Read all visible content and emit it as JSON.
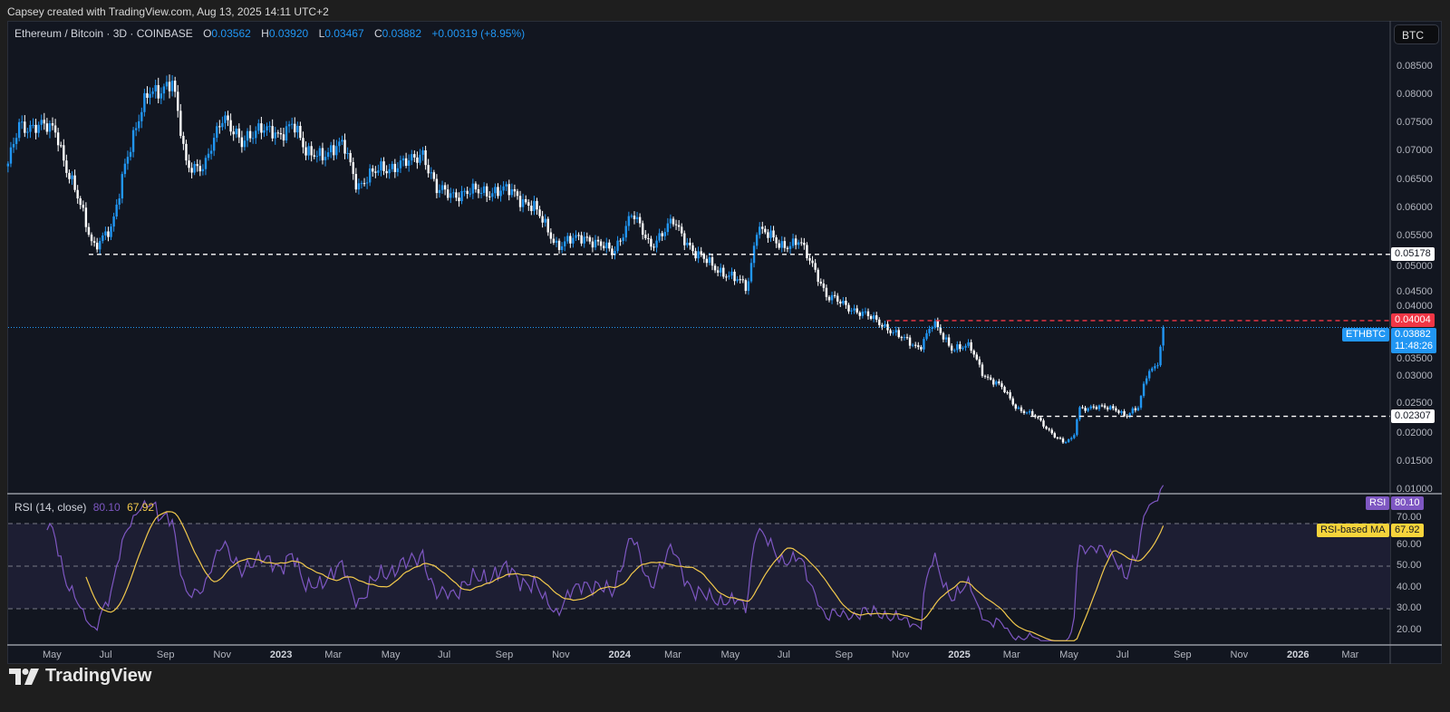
{
  "header": {
    "credit": "Capsey created with TradingView.com, Aug 13, 2025 14:11 UTC+2"
  },
  "legend": {
    "symbol": "Ethereum / Bitcoin · 3D · COINBASE",
    "o_label": "O",
    "o": "0.03562",
    "h_label": "H",
    "h": "0.03920",
    "l_label": "L",
    "l": "0.03467",
    "c_label": "C",
    "c": "0.03882",
    "change": "+0.00319 (+8.95%)"
  },
  "currency": "BTC",
  "rsi": {
    "title": "RSI (14, close)",
    "value": "80.10",
    "ma_value": "67.92",
    "tag_label": "RSI",
    "ma_tag_label": "RSI-based MA"
  },
  "tags": {
    "symbol": "ETHBTC",
    "last_price": "0.03882",
    "countdown": "11:48:26",
    "level_high": "0.04004",
    "level_mid": "0.05178",
    "level_low": "0.02307"
  },
  "branding": {
    "logo_text": "TradingView"
  },
  "colors": {
    "up": "#2196f3",
    "down": "#ffffff",
    "rsi": "#7e57c2",
    "rsi_ma": "#f2c94c",
    "level_red": "#f23645",
    "last_price": "#2196f3",
    "background": "#121620"
  },
  "chart_data": {
    "type": "candlestick",
    "timeframe": "3D",
    "ylim": [
      0.01,
      0.085
    ],
    "grid": false,
    "close_waypoints": [
      [
        "2022-03-15",
        0.0674
      ],
      [
        "2022-03-27",
        0.0748
      ],
      [
        "2022-05-06",
        0.074
      ],
      [
        "2022-05-16",
        0.0674
      ],
      [
        "2022-05-31",
        0.0608
      ],
      [
        "2022-06-15",
        0.0534
      ],
      [
        "2022-07-05",
        0.056
      ],
      [
        "2022-07-20",
        0.069
      ],
      [
        "2022-08-14",
        0.0806
      ],
      [
        "2022-09-08",
        0.082
      ],
      [
        "2022-09-23",
        0.068
      ],
      [
        "2022-10-13",
        0.067
      ],
      [
        "2022-11-02",
        0.077
      ],
      [
        "2022-11-22",
        0.071
      ],
      [
        "2022-12-12",
        0.075
      ],
      [
        "2023-01-01",
        0.072
      ],
      [
        "2023-01-16",
        0.076
      ],
      [
        "2023-01-31",
        0.069
      ],
      [
        "2023-02-20",
        0.07
      ],
      [
        "2023-03-12",
        0.071
      ],
      [
        "2023-03-27",
        0.064
      ],
      [
        "2023-04-21",
        0.067
      ],
      [
        "2023-05-21",
        0.068
      ],
      [
        "2023-06-05",
        0.07
      ],
      [
        "2023-06-20",
        0.063
      ],
      [
        "2023-07-10",
        0.0625
      ],
      [
        "2023-08-09",
        0.063
      ],
      [
        "2023-09-08",
        0.063
      ],
      [
        "2023-10-03",
        0.06
      ],
      [
        "2023-10-28",
        0.0534
      ],
      [
        "2023-11-27",
        0.055
      ],
      [
        "2023-12-27",
        0.052
      ],
      [
        "2024-01-16",
        0.059
      ],
      [
        "2024-02-05",
        0.0534
      ],
      [
        "2024-03-01",
        0.0575
      ],
      [
        "2024-03-26",
        0.0517
      ],
      [
        "2024-04-20",
        0.049
      ],
      [
        "2024-05-20",
        0.046
      ],
      [
        "2024-05-30",
        0.0567
      ],
      [
        "2024-06-24",
        0.0534
      ],
      [
        "2024-07-14",
        0.054
      ],
      [
        "2024-08-03",
        0.0485
      ],
      [
        "2024-08-13",
        0.0444
      ],
      [
        "2024-09-12",
        0.042
      ],
      [
        "2024-10-12",
        0.0395
      ],
      [
        "2024-11-01",
        0.037
      ],
      [
        "2024-11-21",
        0.0353
      ],
      [
        "2024-12-06",
        0.0395
      ],
      [
        "2024-12-26",
        0.0353
      ],
      [
        "2025-01-15",
        0.0353
      ],
      [
        "2025-01-30",
        0.0304
      ],
      [
        "2025-02-19",
        0.028
      ],
      [
        "2025-03-06",
        0.0246
      ],
      [
        "2025-03-26",
        0.023
      ],
      [
        "2025-04-10",
        0.0206
      ],
      [
        "2025-04-25",
        0.0184
      ],
      [
        "2025-05-06",
        0.019
      ],
      [
        "2025-05-12",
        0.0246
      ],
      [
        "2025-06-05",
        0.0246
      ],
      [
        "2025-06-20",
        0.0246
      ],
      [
        "2025-07-02",
        0.023
      ],
      [
        "2025-07-15",
        0.0246
      ],
      [
        "2025-07-25",
        0.0312
      ],
      [
        "2025-08-04",
        0.032
      ],
      [
        "2025-08-13",
        0.03882
      ]
    ],
    "last_candle": {
      "date": "2025-08-13",
      "open": 0.03562,
      "high": 0.0392,
      "low": 0.03467,
      "close": 0.03882
    },
    "levels": [
      {
        "value": 0.05178,
        "from": "2022-06-10",
        "style": "dashed",
        "color": "#ffffff"
      },
      {
        "value": 0.04004,
        "from": "2024-10-17",
        "style": "dashed",
        "color": "#f23645"
      },
      {
        "value": 0.02307,
        "from": "2025-03-21",
        "style": "dashed",
        "color": "#ffffff"
      },
      {
        "value": 0.03882,
        "from": "2022-03-15",
        "style": "dotted",
        "color": "#2196f3"
      }
    ],
    "price_ticks": [
      "0.08500",
      "0.08000",
      "0.07500",
      "0.07000",
      "0.06500",
      "0.06000",
      "0.05500",
      "0.05000",
      "0.04500",
      "0.04000",
      "0.03500",
      "0.03000",
      "0.02500",
      "0.02000",
      "0.01500",
      "0.01000"
    ],
    "rsi_ticks": [
      "70.00",
      "60.00",
      "50.00",
      "40.00",
      "30.00",
      "20.00"
    ],
    "rsi_bands": [
      70,
      50,
      30
    ],
    "time_ticks": [
      {
        "label": "May",
        "date": "2022-05-01"
      },
      {
        "label": "Jul",
        "date": "2022-07-01"
      },
      {
        "label": "Sep",
        "date": "2022-09-01"
      },
      {
        "label": "Nov",
        "date": "2022-11-01"
      },
      {
        "label": "2023",
        "date": "2023-01-01",
        "year": true
      },
      {
        "label": "Mar",
        "date": "2023-03-01"
      },
      {
        "label": "May",
        "date": "2023-05-01"
      },
      {
        "label": "Jul",
        "date": "2023-07-01"
      },
      {
        "label": "Sep",
        "date": "2023-09-01"
      },
      {
        "label": "Nov",
        "date": "2023-11-01"
      },
      {
        "label": "2024",
        "date": "2024-01-01",
        "year": true
      },
      {
        "label": "Mar",
        "date": "2024-03-01"
      },
      {
        "label": "May",
        "date": "2024-05-01"
      },
      {
        "label": "Jul",
        "date": "2024-07-01"
      },
      {
        "label": "Sep",
        "date": "2024-09-01"
      },
      {
        "label": "Nov",
        "date": "2024-11-01"
      },
      {
        "label": "2025",
        "date": "2025-01-01",
        "year": true
      },
      {
        "label": "Mar",
        "date": "2025-03-01"
      },
      {
        "label": "May",
        "date": "2025-05-01"
      },
      {
        "label": "Jul",
        "date": "2025-07-01"
      },
      {
        "label": "Sep",
        "date": "2025-09-01"
      },
      {
        "label": "Nov",
        "date": "2025-11-01"
      },
      {
        "label": "2026",
        "date": "2026-01-01",
        "year": true
      },
      {
        "label": "Mar",
        "date": "2026-03-01"
      }
    ]
  }
}
